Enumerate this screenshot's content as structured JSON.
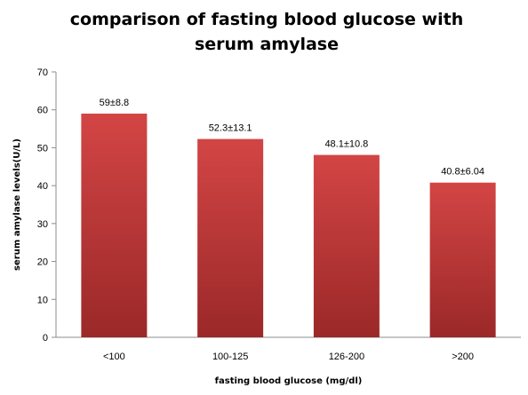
{
  "chart_data": {
    "type": "bar",
    "title": "comparison of fasting blood glucose with serum amylase",
    "xlabel": "fasting blood glucose  (mg/dl)",
    "ylabel": "serum amylase levels(U/L)",
    "categories": [
      "<100",
      "100-125",
      "126-200",
      ">200"
    ],
    "values": [
      59,
      52.3,
      48.1,
      40.8
    ],
    "data_labels": [
      "59±8.8",
      "52.3±13.1",
      "48.1±10.8",
      "40.8±6.04"
    ],
    "ylim": [
      0,
      70
    ],
    "yticks": [
      0,
      10,
      20,
      30,
      40,
      50,
      60,
      70
    ],
    "grid": false,
    "legend": "none",
    "colors": {
      "bar_top": "#D34545",
      "bar_bottom": "#9B2828",
      "axis": "#8C8C8C"
    }
  }
}
